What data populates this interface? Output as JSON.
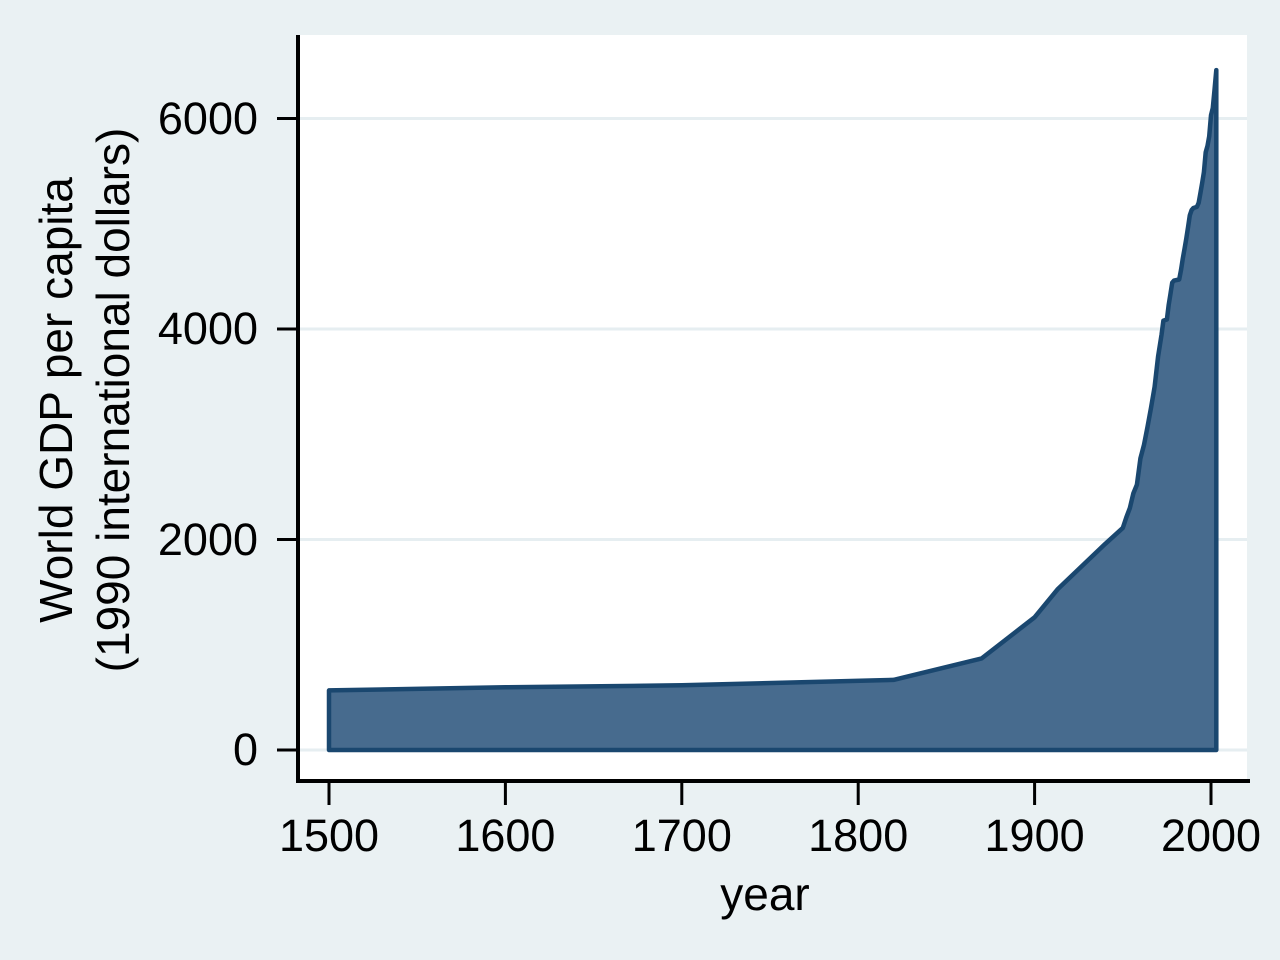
{
  "figure": {
    "background_color": "#eaf1f3",
    "plot_background_color": "#ffffff",
    "grid_color": "#e6eef1",
    "axis_color": "#000000",
    "area_fill_color": "#476b8e",
    "area_stroke_color": "#1a476f"
  },
  "x_axis": {
    "title": "year",
    "tick_values": [
      1500,
      1600,
      1700,
      1800,
      1900,
      2000
    ],
    "tick_labels": [
      "1500",
      "1600",
      "1700",
      "1800",
      "1900",
      "2000"
    ]
  },
  "y_axis": {
    "title_line1": "World GDP per capita",
    "title_line2": "(1990 international dollars)",
    "tick_values": [
      0,
      2000,
      4000,
      6000
    ],
    "tick_labels": [
      "0",
      "2000",
      "4000",
      "6000"
    ]
  },
  "chart_data": {
    "type": "area",
    "title": "",
    "xlabel": "year",
    "ylabel": "World GDP per capita (1990 international dollars)",
    "xlim": [
      1500,
      2010
    ],
    "ylim": [
      0,
      6500
    ],
    "grid": "horizontal",
    "legend": "none",
    "series": [
      {
        "name": "World GDP per capita (1990 international dollars)",
        "baseline": 0,
        "points": [
          [
            1500,
            566
          ],
          [
            1600,
            596
          ],
          [
            1700,
            615
          ],
          [
            1820,
            666
          ],
          [
            1870,
            870
          ],
          [
            1900,
            1261
          ],
          [
            1913,
            1526
          ],
          [
            1940,
            1958
          ],
          [
            1950,
            2110
          ],
          [
            1952,
            2210
          ],
          [
            1954,
            2300
          ],
          [
            1956,
            2440
          ],
          [
            1958,
            2520
          ],
          [
            1960,
            2770
          ],
          [
            1962,
            2900
          ],
          [
            1964,
            3070
          ],
          [
            1966,
            3250
          ],
          [
            1968,
            3450
          ],
          [
            1970,
            3740
          ],
          [
            1972,
            3950
          ],
          [
            1973,
            4080
          ],
          [
            1975,
            4090
          ],
          [
            1976,
            4230
          ],
          [
            1977,
            4330
          ],
          [
            1978,
            4440
          ],
          [
            1979,
            4460
          ],
          [
            1982,
            4470
          ],
          [
            1983,
            4560
          ],
          [
            1984,
            4670
          ],
          [
            1985,
            4760
          ],
          [
            1986,
            4860
          ],
          [
            1987,
            4970
          ],
          [
            1988,
            5080
          ],
          [
            1989,
            5130
          ],
          [
            1990,
            5150
          ],
          [
            1992,
            5160
          ],
          [
            1993,
            5200
          ],
          [
            1994,
            5290
          ],
          [
            1995,
            5390
          ],
          [
            1996,
            5490
          ],
          [
            1997,
            5680
          ],
          [
            1998,
            5740
          ],
          [
            1999,
            5830
          ],
          [
            2000,
            6030
          ],
          [
            2001,
            6100
          ],
          [
            2002,
            6270
          ],
          [
            2003,
            6460
          ]
        ]
      }
    ]
  }
}
